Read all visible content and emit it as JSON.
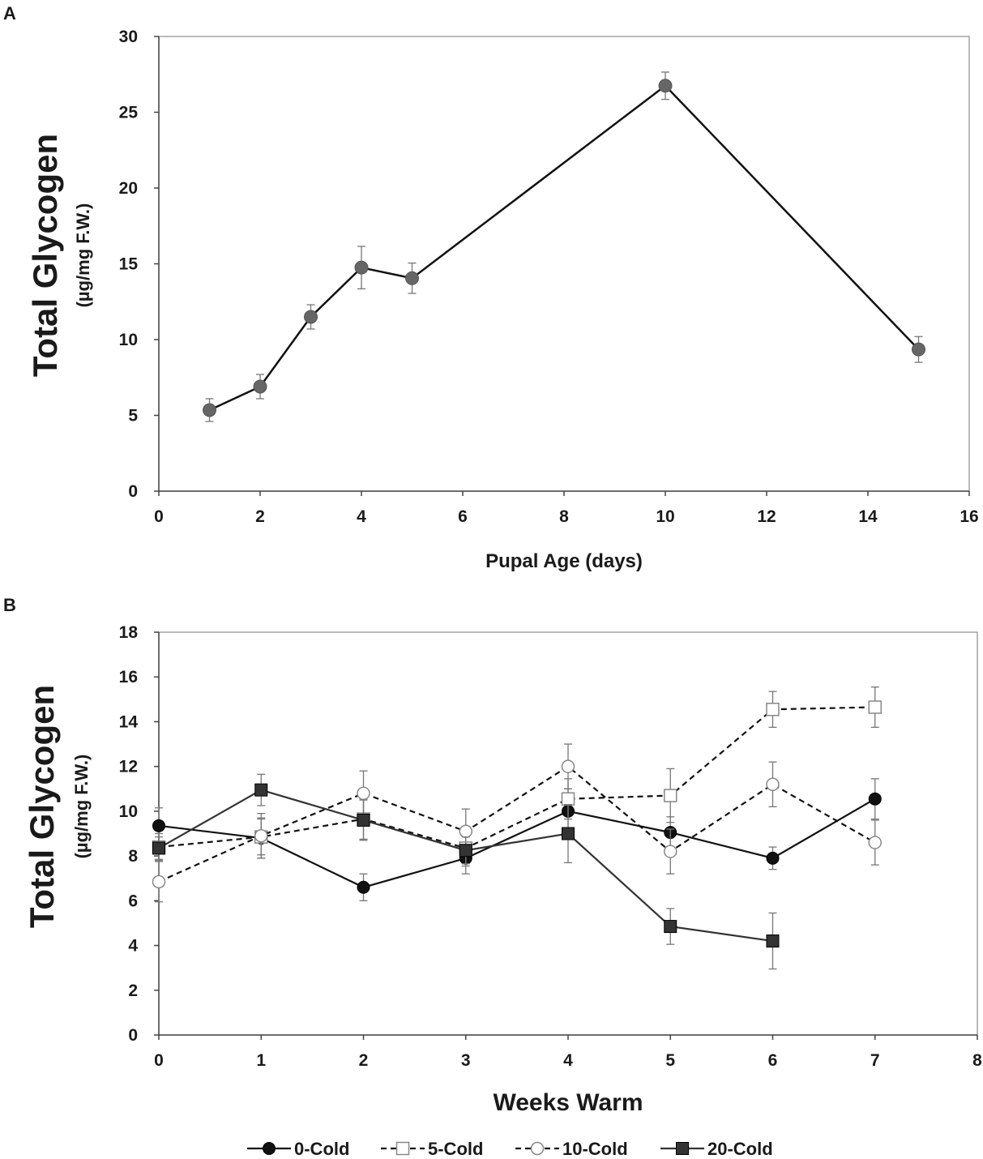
{
  "chart_data": [
    {
      "panel_label": "A",
      "type": "line",
      "xlabel": "Pupal Age (days)",
      "ylabel": "Total Glycogen",
      "ylabel_sub": "(µg/mg F.W.)",
      "xlim": [
        0,
        16
      ],
      "ylim": [
        0,
        30
      ],
      "xticks": [
        0,
        2,
        4,
        6,
        8,
        10,
        12,
        14,
        16
      ],
      "yticks": [
        0,
        5,
        10,
        15,
        20,
        25,
        30
      ],
      "grid": false,
      "series": [
        {
          "name": "Total Glycogen",
          "color": "#666666",
          "x": [
            1,
            2,
            3,
            4,
            5,
            10,
            15
          ],
          "y": [
            5.35,
            6.9,
            11.5,
            14.75,
            14.05,
            26.75,
            9.35
          ],
          "err": [
            0.75,
            0.8,
            0.8,
            1.4,
            1.0,
            0.9,
            0.85
          ]
        }
      ]
    },
    {
      "panel_label": "B",
      "type": "line",
      "xlabel": "Weeks Warm",
      "ylabel": "Total Glycogen",
      "ylabel_sub": "(µg/mg F.W.)",
      "xlim": [
        0,
        8
      ],
      "ylim": [
        0,
        18
      ],
      "xticks": [
        0,
        1,
        2,
        3,
        4,
        5,
        6,
        7,
        8
      ],
      "yticks": [
        0,
        2,
        4,
        6,
        8,
        10,
        12,
        14,
        16,
        18
      ],
      "grid": false,
      "legend_position": "bottom",
      "series": [
        {
          "name": "0-Cold",
          "marker": "filled-circle",
          "line": "solid",
          "color": "#111111",
          "x": [
            0,
            1,
            2,
            3,
            4,
            5,
            6,
            7
          ],
          "y": [
            9.35,
            8.8,
            6.6,
            7.9,
            10.0,
            9.05,
            7.9,
            10.55
          ],
          "err": [
            0.8,
            0.9,
            0.6,
            0.7,
            1.0,
            0.7,
            0.5,
            0.9
          ]
        },
        {
          "name": "5-Cold",
          "marker": "open-square",
          "line": "dashed",
          "color": "#111111",
          "x": [
            0,
            1,
            2,
            3,
            4,
            5,
            6,
            7
          ],
          "y": [
            8.4,
            8.85,
            9.65,
            8.35,
            10.55,
            10.7,
            14.55,
            14.65
          ],
          "err": [
            0.6,
            0.8,
            0.9,
            0.8,
            0.9,
            1.2,
            0.8,
            0.9
          ]
        },
        {
          "name": "10-Cold",
          "marker": "open-circle",
          "line": "dashed",
          "color": "#111111",
          "x": [
            0,
            1,
            2,
            3,
            4,
            5,
            6,
            7
          ],
          "y": [
            6.85,
            8.9,
            10.8,
            9.1,
            12.0,
            8.2,
            11.2,
            8.6
          ],
          "err": [
            0.9,
            1.0,
            1.0,
            1.0,
            1.0,
            1.0,
            1.0,
            1.0
          ]
        },
        {
          "name": "20-Cold",
          "marker": "filled-square",
          "line": "solid",
          "color": "#333333",
          "x": [
            0,
            1,
            2,
            3,
            4,
            5,
            6
          ],
          "y": [
            8.35,
            10.95,
            9.6,
            8.25,
            9.0,
            4.85,
            4.2
          ],
          "err": [
            0.5,
            0.7,
            0.9,
            0.6,
            1.3,
            0.8,
            1.25
          ]
        }
      ]
    }
  ]
}
